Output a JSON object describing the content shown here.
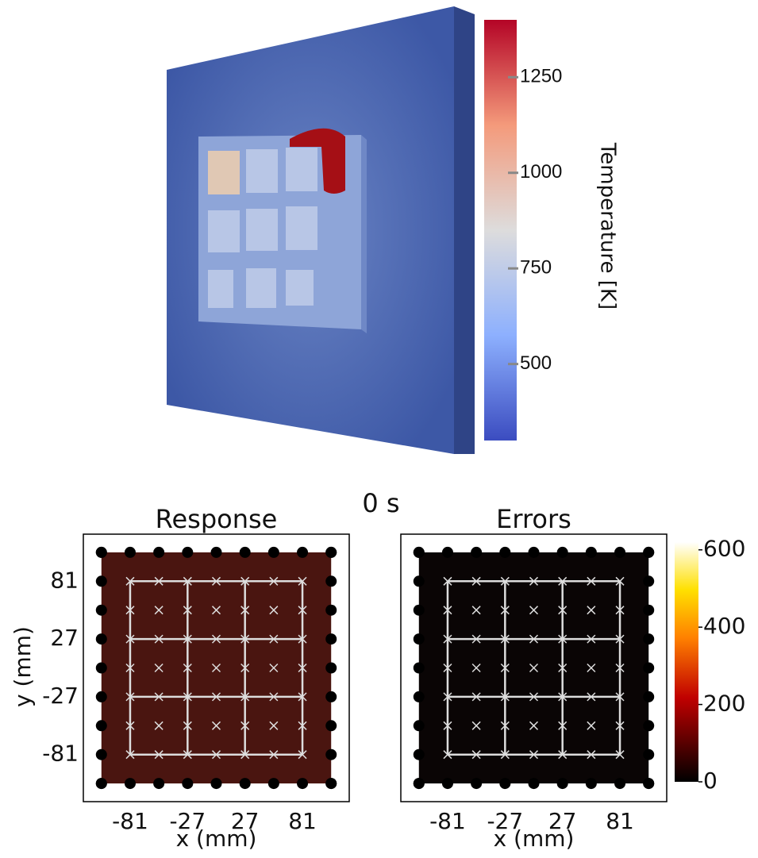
{
  "render": {
    "colorbar": {
      "label": "Temperature [K]",
      "lim": [
        300,
        1400
      ],
      "ticks": [
        500,
        750,
        1000,
        1250
      ]
    }
  },
  "time_label": "0 s",
  "panels": [
    {
      "title": "Response",
      "xlabel": "x (mm)",
      "ylabel": "y (mm)",
      "color": "#4a1510",
      "xlim": [
        -125,
        125
      ],
      "ylim": [
        -125,
        125
      ],
      "xticks": [
        -81,
        -27,
        27,
        81
      ],
      "yticks": [
        -81,
        -27,
        27,
        81
      ]
    },
    {
      "title": "Errors",
      "xlabel": "x (mm)",
      "color": "#0a0505",
      "xlim": [
        -125,
        125
      ],
      "ylim": [
        -125,
        125
      ],
      "xticks": [
        -81,
        -27,
        27,
        81
      ]
    }
  ],
  "colorbar": {
    "lim": [
      0,
      620
    ],
    "ticks": [
      0,
      200,
      400,
      600
    ]
  }
}
